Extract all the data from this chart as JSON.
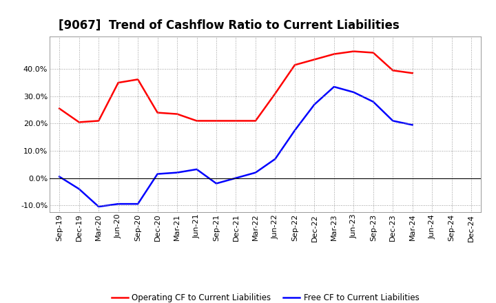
{
  "title": "[9067]  Trend of Cashflow Ratio to Current Liabilities",
  "x_labels": [
    "Sep-19",
    "Dec-19",
    "Mar-20",
    "Jun-20",
    "Sep-20",
    "Dec-20",
    "Mar-21",
    "Jun-21",
    "Sep-21",
    "Dec-21",
    "Mar-22",
    "Jun-22",
    "Sep-22",
    "Dec-22",
    "Mar-23",
    "Jun-23",
    "Sep-23",
    "Dec-23",
    "Mar-24",
    "Jun-24",
    "Sep-24",
    "Dec-24"
  ],
  "operating_cf": [
    0.255,
    0.205,
    0.21,
    0.35,
    0.362,
    0.24,
    0.235,
    0.21,
    0.21,
    0.21,
    0.21,
    0.31,
    0.415,
    0.435,
    0.455,
    0.465,
    0.46,
    0.395,
    0.385,
    null,
    null,
    null
  ],
  "free_cf": [
    0.005,
    -0.04,
    -0.105,
    -0.095,
    -0.095,
    0.015,
    0.02,
    0.032,
    -0.02,
    0.0,
    0.02,
    0.07,
    0.175,
    0.27,
    0.335,
    0.315,
    0.28,
    0.21,
    0.195,
    null,
    null,
    null
  ],
  "operating_color": "#FF0000",
  "free_color": "#0000FF",
  "ylim": [
    -0.125,
    0.52
  ],
  "yticks": [
    -0.1,
    0.0,
    0.1,
    0.2,
    0.3,
    0.4
  ],
  "background_color": "#FFFFFF",
  "grid_color": "#999999",
  "legend_op": "Operating CF to Current Liabilities",
  "legend_free": "Free CF to Current Liabilities",
  "title_fontsize": 12,
  "tick_fontsize": 8,
  "ytick_fontsize": 8
}
